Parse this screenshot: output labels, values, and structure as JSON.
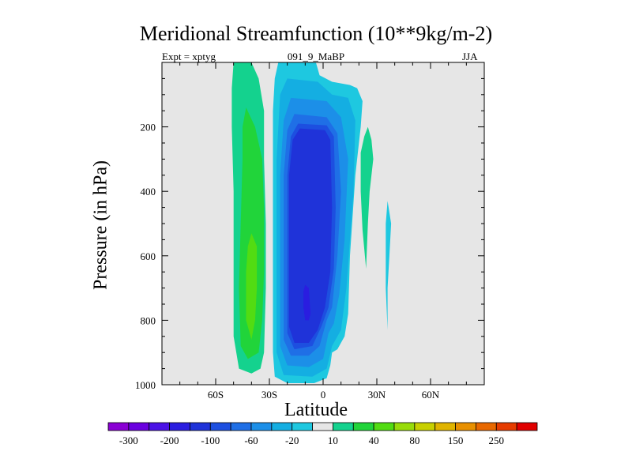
{
  "header": {
    "title": "Meridional Streamfunction (10**9kg/m-2)",
    "left": "Expt = xptyg",
    "center": "091_9_MaBP",
    "right": "JJA"
  },
  "chart_data": {
    "type": "heatmap",
    "title": "Meridional Streamfunction (10**9kg/m-2)",
    "xlabel": "Latitude",
    "ylabel": "Pressure (in hPa)",
    "xlim": [
      -90,
      90
    ],
    "ylim": [
      1000,
      0
    ],
    "y_reversed": true,
    "grid": false,
    "background_color": "#e6e6e6",
    "x_ticks": [
      {
        "value": -60,
        "label": "60S"
      },
      {
        "value": -30,
        "label": "30S"
      },
      {
        "value": 0,
        "label": "0"
      },
      {
        "value": 30,
        "label": "30N"
      },
      {
        "value": 60,
        "label": "60N"
      }
    ],
    "y_ticks": [
      {
        "value": 200,
        "label": "200"
      },
      {
        "value": 400,
        "label": "400"
      },
      {
        "value": 600,
        "label": "600"
      },
      {
        "value": 800,
        "label": "800"
      },
      {
        "value": 1000,
        "label": "1000"
      }
    ],
    "colorbar": {
      "placement": "bottom",
      "colors": [
        "#8a00d4",
        "#6a00e0",
        "#4b12e6",
        "#2a1de0",
        "#1f33d9",
        "#1d4fe0",
        "#1f6fe6",
        "#1c8fe8",
        "#14aee2",
        "#1ec8e0",
        "#e6e6e6",
        "#14d28e",
        "#21d43a",
        "#52dc12",
        "#98dc0a",
        "#c8d000",
        "#e0b400",
        "#e89000",
        "#e86800",
        "#e63c00",
        "#e00000"
      ],
      "labels": [
        {
          "after_box": 1,
          "text": "-300"
        },
        {
          "after_box": 3,
          "text": "-200"
        },
        {
          "after_box": 5,
          "text": "-100"
        },
        {
          "after_box": 7,
          "text": "-60"
        },
        {
          "after_box": 9,
          "text": "-20"
        },
        {
          "after_box": 11,
          "text": "10"
        },
        {
          "after_box": 13,
          "text": "40"
        },
        {
          "after_box": 15,
          "text": "80"
        },
        {
          "after_box": 17,
          "text": "150"
        },
        {
          "after_box": 19,
          "text": "250"
        }
      ]
    },
    "regions": [
      {
        "level": 10,
        "color": "#14d28e",
        "points": [
          [
            -50,
            0
          ],
          [
            -40,
            0
          ],
          [
            -36,
            50
          ],
          [
            -33,
            150
          ],
          [
            -33,
            300
          ],
          [
            -32,
            500
          ],
          [
            -32,
            700
          ],
          [
            -33,
            900
          ],
          [
            -35,
            950
          ],
          [
            -40,
            965
          ],
          [
            -47,
            950
          ],
          [
            -50,
            850
          ],
          [
            -50,
            600
          ],
          [
            -50,
            400
          ],
          [
            -51,
            200
          ],
          [
            -51,
            80
          ]
        ]
      },
      {
        "level": 40,
        "color": "#21d43a",
        "points": [
          [
            -43,
            140
          ],
          [
            -38,
            200
          ],
          [
            -34,
            300
          ],
          [
            -33,
            450
          ],
          [
            -33,
            650
          ],
          [
            -34,
            800
          ],
          [
            -36,
            900
          ],
          [
            -42,
            920
          ],
          [
            -46,
            880
          ],
          [
            -47,
            700
          ],
          [
            -46,
            500
          ],
          [
            -45,
            300
          ],
          [
            -45,
            200
          ]
        ]
      },
      {
        "level": 80,
        "color": "#52dc12",
        "points": [
          [
            -40,
            530
          ],
          [
            -37,
            570
          ],
          [
            -37,
            700
          ],
          [
            -38,
            800
          ],
          [
            -40,
            860
          ],
          [
            -43,
            800
          ],
          [
            -43,
            650
          ],
          [
            -42,
            570
          ]
        ]
      },
      {
        "level": 10,
        "color": "#14d28e",
        "points": [
          [
            23,
            230
          ],
          [
            25,
            200
          ],
          [
            27,
            240
          ],
          [
            28,
            300
          ],
          [
            26,
            400
          ],
          [
            25,
            500
          ],
          [
            24,
            640
          ],
          [
            22,
            520
          ],
          [
            21,
            400
          ],
          [
            21,
            280
          ]
        ]
      },
      {
        "level": -20,
        "color": "#1ec8e0",
        "points": [
          [
            -25,
            0
          ],
          [
            -4,
            0
          ],
          [
            -2,
            40
          ],
          [
            5,
            60
          ],
          [
            15,
            70
          ],
          [
            19,
            80
          ],
          [
            22,
            120
          ],
          [
            21,
            200
          ],
          [
            18,
            350
          ],
          [
            15,
            600
          ],
          [
            14,
            780
          ],
          [
            12,
            850
          ],
          [
            8,
            890
          ],
          [
            5,
            900
          ],
          [
            4,
            940
          ],
          [
            2,
            980
          ],
          [
            -5,
            995
          ],
          [
            -20,
            995
          ],
          [
            -27,
            975
          ],
          [
            -28,
            900
          ],
          [
            -28,
            700
          ],
          [
            -28,
            400
          ],
          [
            -28,
            150
          ],
          [
            -27,
            50
          ]
        ]
      },
      {
        "level": -20,
        "color": "#1ec8e0",
        "points": [
          [
            36,
            430
          ],
          [
            38,
            500
          ],
          [
            37,
            600
          ],
          [
            36,
            700
          ],
          [
            36,
            830
          ],
          [
            35,
            700
          ],
          [
            35,
            600
          ],
          [
            35,
            500
          ]
        ]
      },
      {
        "level": -60,
        "color": "#14aee2",
        "points": [
          [
            -20,
            50
          ],
          [
            -3,
            60
          ],
          [
            5,
            100
          ],
          [
            14,
            110
          ],
          [
            18,
            180
          ],
          [
            17,
            400
          ],
          [
            13,
            700
          ],
          [
            10,
            830
          ],
          [
            5,
            880
          ],
          [
            2,
            950
          ],
          [
            -6,
            975
          ],
          [
            -22,
            970
          ],
          [
            -26,
            900
          ],
          [
            -26,
            600
          ],
          [
            -26,
            300
          ],
          [
            -24,
            100
          ]
        ]
      },
      {
        "level": -100,
        "color": "#1c8fe8",
        "points": [
          [
            -18,
            110
          ],
          [
            2,
            120
          ],
          [
            10,
            170
          ],
          [
            14,
            300
          ],
          [
            12,
            550
          ],
          [
            9,
            720
          ],
          [
            6,
            810
          ],
          [
            3,
            840
          ],
          [
            0,
            920
          ],
          [
            -8,
            945
          ],
          [
            -20,
            940
          ],
          [
            -24,
            880
          ],
          [
            -24,
            600
          ],
          [
            -24,
            350
          ],
          [
            -22,
            180
          ]
        ]
      },
      {
        "level": -150,
        "color": "#1f6fe6",
        "points": [
          [
            -16,
            160
          ],
          [
            2,
            170
          ],
          [
            8,
            220
          ],
          [
            10,
            400
          ],
          [
            8,
            600
          ],
          [
            5,
            760
          ],
          [
            2,
            800
          ],
          [
            -2,
            880
          ],
          [
            -8,
            910
          ],
          [
            -18,
            910
          ],
          [
            -22,
            860
          ],
          [
            -22,
            600
          ],
          [
            -22,
            350
          ],
          [
            -20,
            210
          ]
        ]
      },
      {
        "level": -200,
        "color": "#1d4fe0",
        "points": [
          [
            -14,
            190
          ],
          [
            2,
            195
          ],
          [
            6,
            230
          ],
          [
            7,
            450
          ],
          [
            6,
            640
          ],
          [
            3,
            760
          ],
          [
            -1,
            820
          ],
          [
            -6,
            880
          ],
          [
            -16,
            890
          ],
          [
            -20,
            840
          ],
          [
            -20,
            600
          ],
          [
            -20,
            350
          ],
          [
            -18,
            230
          ]
        ]
      },
      {
        "level": -250,
        "color": "#1f33d9",
        "points": [
          [
            -13,
            205
          ],
          [
            1,
            210
          ],
          [
            4,
            240
          ],
          [
            5,
            450
          ],
          [
            4,
            650
          ],
          [
            1,
            760
          ],
          [
            -3,
            830
          ],
          [
            -8,
            870
          ],
          [
            -16,
            870
          ],
          [
            -19,
            820
          ],
          [
            -19,
            600
          ],
          [
            -19,
            350
          ],
          [
            -17,
            240
          ]
        ]
      },
      {
        "level": -300,
        "color": "#2a1de0",
        "points": [
          [
            -10,
            690
          ],
          [
            -8,
            700
          ],
          [
            -7,
            780
          ],
          [
            -8,
            800
          ],
          [
            -10,
            800
          ],
          [
            -11,
            760
          ],
          [
            -11,
            710
          ]
        ]
      }
    ]
  }
}
